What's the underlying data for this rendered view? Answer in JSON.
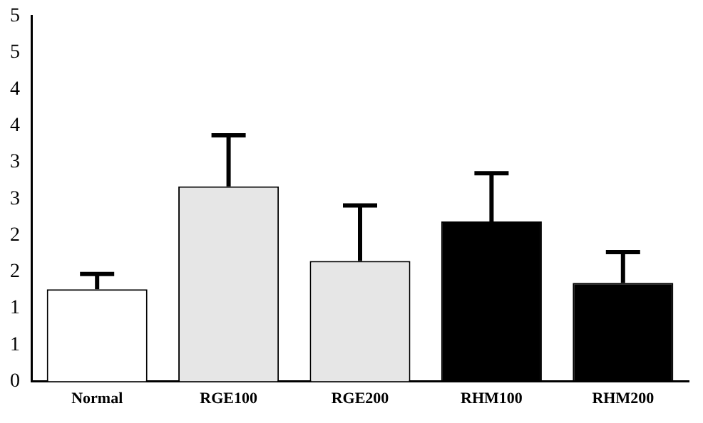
{
  "chart_data": {
    "type": "bar",
    "categories": [
      "Normal",
      "RGE100",
      "RGE200",
      "RHM100",
      "RHM200"
    ],
    "values": [
      1.26,
      2.67,
      1.65,
      2.19,
      1.35
    ],
    "colors": [
      "#ffffff",
      "#e6e6e6",
      "#e6e6e6",
      "#000000",
      "#000000"
    ],
    "errors": [
      [
        1.26,
        1.47
      ],
      [
        2.67,
        3.37
      ],
      [
        1.65,
        2.41
      ],
      [
        2.19,
        2.85
      ],
      [
        1.35,
        1.77
      ]
    ],
    "ylim": [
      0,
      5
    ],
    "yticks": [
      0,
      {
        "value": 0.5,
        "label": "1"
      },
      1,
      {
        "value": 1.5,
        "label": "2"
      },
      2,
      {
        "value": 2.5,
        "label": "3"
      },
      3,
      {
        "value": 3.5,
        "label": "4"
      },
      4,
      {
        "value": 4.5,
        "label": "5"
      },
      5
    ],
    "grid": false,
    "legend": false
  }
}
